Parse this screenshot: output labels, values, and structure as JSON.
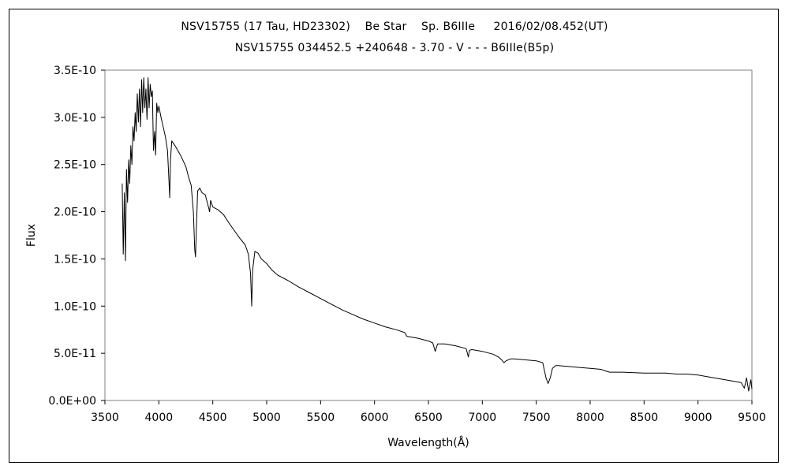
{
  "chart_data": {
    "type": "line",
    "title": "NSV15755 (17 Tau, HD23302)    Be Star    Sp. B6IIIe     2016/02/08.452(UT)",
    "subtitle": "NSV15755 034452.5 +240648 - 3.70 - V - - - B6IIIe(B5p)",
    "xlabel": "Wavelength(Å)",
    "ylabel": "Flux",
    "xlim": [
      3500,
      9500
    ],
    "ylim": [
      0,
      3.5e-10
    ],
    "x_ticks": [
      3500,
      4000,
      4500,
      5000,
      5500,
      6000,
      6500,
      7000,
      7500,
      8000,
      8500,
      9000,
      9500
    ],
    "x_tick_labels": [
      "3500",
      "4000",
      "4500",
      "5000",
      "5500",
      "6000",
      "6500",
      "7000",
      "7500",
      "8000",
      "8500",
      "9000",
      "9500"
    ],
    "y_ticks": [
      0,
      5e-11,
      1e-10,
      1.5e-10,
      2e-10,
      2.5e-10,
      3e-10,
      3.5e-10
    ],
    "y_tick_labels": [
      "0.0E+00",
      "5.0E-11",
      "1.0E-10",
      "1.5E-10",
      "2.0E-10",
      "2.5E-10",
      "3.0E-10",
      "3.5E-10"
    ],
    "grid": false,
    "series": [
      {
        "color": "#000000",
        "x": [
          3660,
          3670,
          3680,
          3690,
          3700,
          3710,
          3720,
          3730,
          3740,
          3750,
          3760,
          3770,
          3780,
          3790,
          3800,
          3810,
          3820,
          3830,
          3840,
          3850,
          3860,
          3870,
          3880,
          3890,
          3900,
          3910,
          3920,
          3930,
          3940,
          3950,
          3960,
          3970,
          3980,
          3990,
          4000,
          4020,
          4040,
          4060,
          4080,
          4095,
          4101,
          4108,
          4120,
          4150,
          4200,
          4250,
          4280,
          4300,
          4320,
          4333,
          4340,
          4347,
          4360,
          4380,
          4400,
          4430,
          4460,
          4471,
          4480,
          4500,
          4550,
          4600,
          4650,
          4700,
          4750,
          4800,
          4830,
          4850,
          4861,
          4870,
          4890,
          4920,
          4950,
          5000,
          5050,
          5100,
          5200,
          5300,
          5400,
          5500,
          5600,
          5700,
          5800,
          5900,
          6000,
          6100,
          6200,
          6280,
          6300,
          6400,
          6500,
          6540,
          6563,
          6585,
          6650,
          6750,
          6850,
          6870,
          6880,
          6900,
          7000,
          7100,
          7150,
          7180,
          7200,
          7220,
          7260,
          7300,
          7400,
          7500,
          7560,
          7590,
          7610,
          7630,
          7650,
          7680,
          7700,
          7800,
          7900,
          8000,
          8100,
          8150,
          8180,
          8300,
          8500,
          8700,
          8800,
          8900,
          9000,
          9100,
          9200,
          9300,
          9350,
          9400,
          9430,
          9450,
          9470,
          9490,
          9500
        ],
        "y": [
          2.3e-10,
          1.55e-10,
          2.2e-10,
          1.48e-10,
          2.45e-10,
          2.1e-10,
          2.55e-10,
          2.3e-10,
          2.7e-10,
          2.5e-10,
          2.9e-10,
          2.75e-10,
          3.05e-10,
          2.85e-10,
          3.25e-10,
          2.95e-10,
          3.3e-10,
          2.9e-10,
          3.4e-10,
          3.05e-10,
          3.42e-10,
          3.1e-10,
          3.3e-10,
          2.98e-10,
          3.42e-10,
          3.1e-10,
          3.35e-10,
          3.22e-10,
          3.28e-10,
          2.65e-10,
          2.85e-10,
          2.6e-10,
          3.15e-10,
          3.05e-10,
          3.12e-10,
          3e-10,
          2.9e-10,
          2.8e-10,
          2.65e-10,
          2.3e-10,
          2.15e-10,
          2.55e-10,
          2.75e-10,
          2.7e-10,
          2.6e-10,
          2.48e-10,
          2.35e-10,
          2.28e-10,
          2e-10,
          1.6e-10,
          1.52e-10,
          1.8e-10,
          2.22e-10,
          2.25e-10,
          2.2e-10,
          2.18e-10,
          2.05e-10,
          2e-10,
          2.12e-10,
          2.05e-10,
          2.02e-10,
          1.97e-10,
          1.88e-10,
          1.8e-10,
          1.72e-10,
          1.65e-10,
          1.55e-10,
          1.35e-10,
          1e-10,
          1.38e-10,
          1.58e-10,
          1.56e-10,
          1.5e-10,
          1.45e-10,
          1.38e-10,
          1.33e-10,
          1.27e-10,
          1.2e-10,
          1.14e-10,
          1.08e-10,
          1.02e-10,
          9.6e-11,
          9.1e-11,
          8.6e-11,
          8.2e-11,
          7.8e-11,
          7.5e-11,
          7.2e-11,
          6.8e-11,
          6.6e-11,
          6.3e-11,
          6.1e-11,
          5.2e-11,
          6e-11,
          6e-11,
          5.8e-11,
          5.5e-11,
          4.6e-11,
          5.3e-11,
          5.4e-11,
          5.2e-11,
          4.9e-11,
          4.6e-11,
          4.3e-11,
          4e-11,
          4.2e-11,
          4.4e-11,
          4.4e-11,
          4.3e-11,
          4.2e-11,
          4e-11,
          2.4e-11,
          1.8e-11,
          2.4e-11,
          3.4e-11,
          3.7e-11,
          3.7e-11,
          3.6e-11,
          3.5e-11,
          3.4e-11,
          3.3e-11,
          3.1e-11,
          3e-11,
          3e-11,
          2.9e-11,
          2.9e-11,
          2.8e-11,
          2.8e-11,
          2.7e-11,
          2.5e-11,
          2.3e-11,
          2.1e-11,
          2e-11,
          1.9e-11,
          1.3e-11,
          2.4e-11,
          1e-11,
          2.2e-11,
          1.2e-11
        ]
      }
    ]
  }
}
